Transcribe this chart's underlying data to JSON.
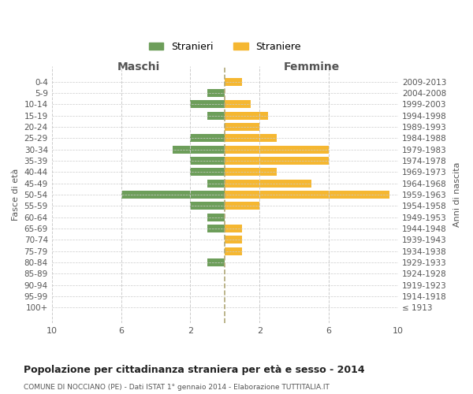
{
  "age_groups": [
    "100+",
    "95-99",
    "90-94",
    "85-89",
    "80-84",
    "75-79",
    "70-74",
    "65-69",
    "60-64",
    "55-59",
    "50-54",
    "45-49",
    "40-44",
    "35-39",
    "30-34",
    "25-29",
    "20-24",
    "15-19",
    "10-14",
    "5-9",
    "0-4"
  ],
  "birth_years": [
    "≤ 1913",
    "1914-1918",
    "1919-1923",
    "1924-1928",
    "1929-1933",
    "1934-1938",
    "1939-1943",
    "1944-1948",
    "1949-1953",
    "1954-1958",
    "1959-1963",
    "1964-1968",
    "1969-1973",
    "1974-1978",
    "1979-1983",
    "1984-1988",
    "1989-1993",
    "1994-1998",
    "1999-2003",
    "2004-2008",
    "2009-2013"
  ],
  "maschi": [
    0,
    0,
    0,
    0,
    1,
    0,
    0,
    1,
    1,
    2,
    6,
    1,
    2,
    2,
    3,
    2,
    0,
    1,
    2,
    1,
    0
  ],
  "femmine": [
    0,
    0,
    0,
    0,
    0,
    1,
    1,
    1,
    0,
    2,
    9.5,
    5,
    3,
    6,
    6,
    3,
    2,
    2.5,
    1.5,
    0,
    1
  ],
  "color_maschi": "#6d9e5a",
  "color_femmine": "#f5b731",
  "title": "Popolazione per cittadinanza straniera per età e sesso - 2014",
  "subtitle": "COMUNE DI NOCCIANO (PE) - Dati ISTAT 1° gennaio 2014 - Elaborazione TUTTITALIA.IT",
  "xlabel_left": "Maschi",
  "xlabel_right": "Femmine",
  "ylabel": "Fasce di età",
  "ylabel_right": "Anni di nascita",
  "legend_maschi": "Stranieri",
  "legend_femmine": "Straniere",
  "xlim": 10,
  "background_color": "#ffffff",
  "grid_color": "#cccccc",
  "centerline_color": "#b0a878"
}
